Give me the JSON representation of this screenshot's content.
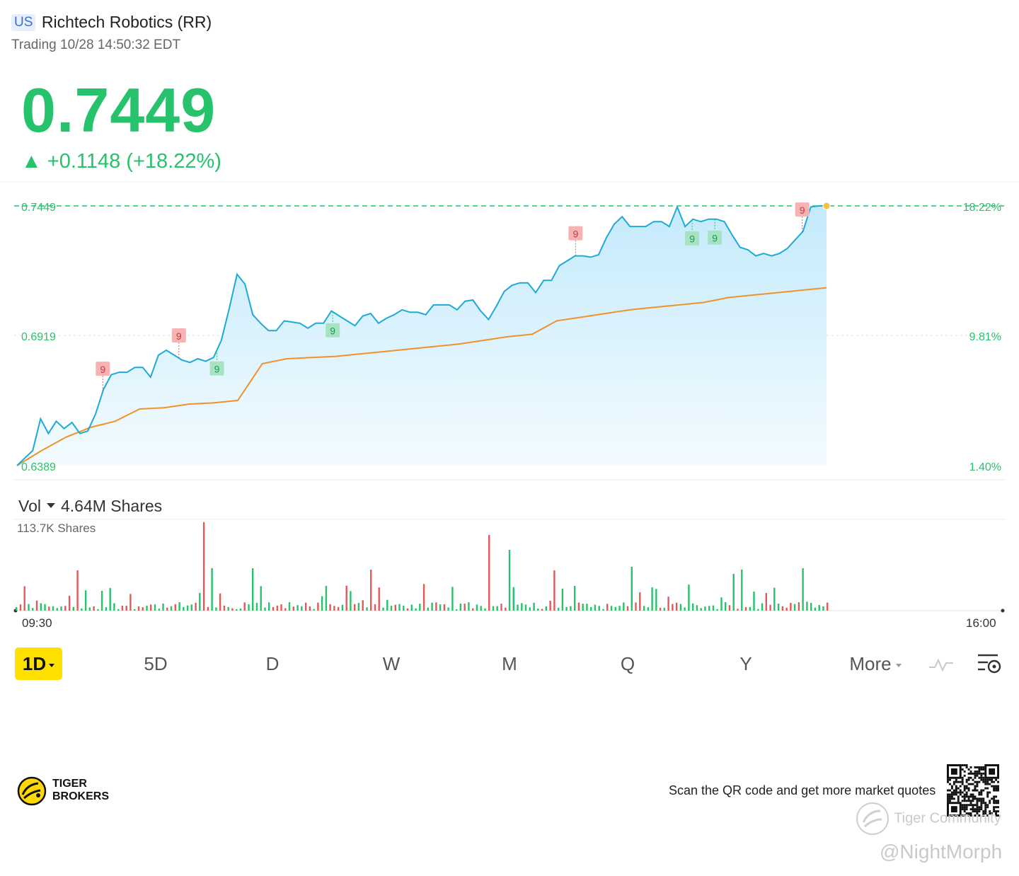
{
  "header": {
    "market": "US",
    "name": "Richtech Robotics (RR)",
    "status": "Trading 10/28 14:50:32 EDT",
    "price": "0.7449",
    "change": "▲ +0.1148 (+18.22%)"
  },
  "colors": {
    "up": "#27c26c",
    "down": "#e05a5a",
    "line": "#1eaad6",
    "avg": "#f0922a",
    "area_top": "#c9ecfb"
  },
  "chart_data": {
    "type": "line",
    "title": "",
    "left_labels": [
      "0.7449",
      "0.6919",
      "0.6389"
    ],
    "right_labels": [
      "18.22%",
      "9.81%",
      "1.40%"
    ],
    "x_labels": [
      "09:30",
      "16:00"
    ],
    "ylim": [
      0.6389,
      0.7449
    ],
    "series": [
      {
        "values": [
          0.6389,
          0.642,
          0.645,
          0.658,
          0.652,
          0.657,
          0.654,
          0.6565,
          0.652,
          0.653,
          0.66,
          0.67,
          0.676,
          0.677,
          0.677,
          0.679,
          0.679,
          0.675,
          0.684,
          0.686,
          0.684,
          0.682,
          0.681,
          0.6825,
          0.6815,
          0.683,
          0.69,
          0.703,
          0.717,
          0.713,
          0.7005,
          0.697,
          0.694,
          0.694,
          0.698,
          0.6975,
          0.697,
          0.695,
          0.697,
          0.697,
          0.702,
          0.7,
          0.698,
          0.696,
          0.7,
          0.701,
          0.697,
          0.699,
          0.7005,
          0.7025,
          0.7015,
          0.7015,
          0.7005,
          0.7045,
          0.7045,
          0.7045,
          0.7025,
          0.706,
          0.7065,
          0.702,
          0.6985,
          0.704,
          0.71,
          0.7125,
          0.7135,
          0.7135,
          0.7095,
          0.7145,
          0.7145,
          0.7205,
          0.7225,
          0.7245,
          0.7245,
          0.724,
          0.725,
          0.732,
          0.7375,
          0.7405,
          0.7365,
          0.7365,
          0.7365,
          0.7385,
          0.7385,
          0.7365,
          0.7445,
          0.7365,
          0.7395,
          0.7385,
          0.7395,
          0.7395,
          0.7385,
          0.733,
          0.728,
          0.727,
          0.7245,
          0.7255,
          0.7245,
          0.7255,
          0.7275,
          0.731,
          0.7345,
          0.7445,
          0.7449,
          0.7449
        ]
      },
      {
        "name": "",
        "values": [
          0.6389,
          0.645,
          0.6505,
          0.6545,
          0.657,
          0.662,
          0.6625,
          0.664,
          0.6645,
          0.6655,
          0.6805,
          0.6825,
          0.683,
          0.6835,
          0.6845,
          0.6855,
          0.6865,
          0.6875,
          0.6885,
          0.69,
          0.6915,
          0.6925,
          0.698,
          0.6995,
          0.701,
          0.7025,
          0.7035,
          0.7045,
          0.7055,
          0.7075,
          0.7085,
          0.7095,
          0.7105,
          0.7115
        ]
      }
    ]
  },
  "markers": [
    {
      "type": "sell",
      "label": "9",
      "pos": 0.106
    },
    {
      "type": "sell",
      "label": "9",
      "pos": 0.2
    },
    {
      "type": "buy",
      "label": "9",
      "pos": 0.247
    },
    {
      "type": "buy",
      "label": "9",
      "pos": 0.39
    },
    {
      "type": "sell",
      "label": "9",
      "pos": 0.69
    },
    {
      "type": "buy",
      "label": "9",
      "pos": 0.834
    },
    {
      "type": "buy",
      "label": "9",
      "pos": 0.862
    },
    {
      "type": "sell",
      "label": "9",
      "pos": 0.97
    }
  ],
  "volume": {
    "selector": "Vol",
    "total": "4.64M Shares",
    "max_label": "113.7K Shares"
  },
  "tabs": {
    "d1": "1D",
    "d5": "5D",
    "d": "D",
    "w": "W",
    "m": "M",
    "q": "Q",
    "y": "Y",
    "more": "More"
  },
  "footer": {
    "brand_line1": "TIGER",
    "brand_line2": "BROKERS",
    "scan_text": "Scan the QR code and get more market quotes",
    "watermark1": "Tiger Community",
    "watermark2": "@NightMorph"
  }
}
